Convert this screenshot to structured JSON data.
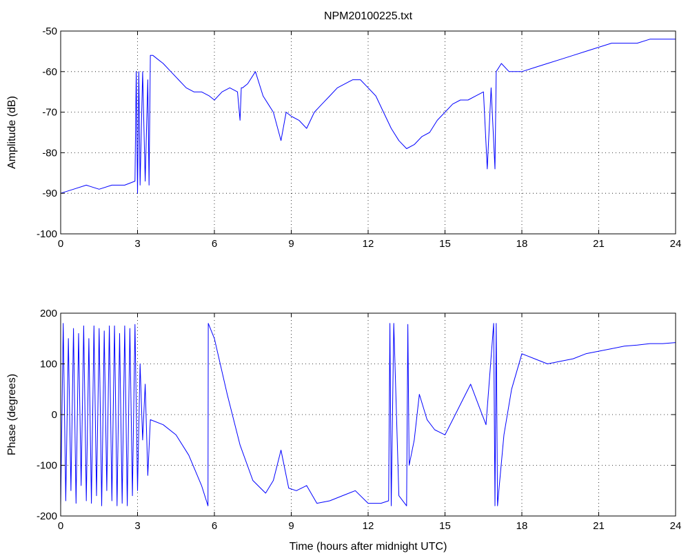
{
  "chart_data": [
    {
      "type": "line",
      "title": "NPM20100225.txt",
      "xlabel": "",
      "ylabel": "Amplitude (dB)",
      "xlim": [
        0,
        24
      ],
      "ylim": [
        -100,
        -50
      ],
      "xticks": [
        0,
        3,
        6,
        9,
        12,
        15,
        18,
        21,
        24
      ],
      "yticks": [
        -100,
        -90,
        -80,
        -70,
        -60,
        -50
      ],
      "grid": true,
      "series": [
        {
          "color": "#0000ff",
          "x": [
            0,
            0.5,
            1.0,
            1.5,
            2.0,
            2.5,
            2.9,
            2.95,
            3.0,
            3.05,
            3.1,
            3.2,
            3.3,
            3.4,
            3.45,
            3.5,
            3.6,
            3.8,
            4.0,
            4.3,
            4.6,
            4.9,
            5.2,
            5.5,
            5.8,
            6.0,
            6.3,
            6.6,
            6.9,
            7.0,
            7.05,
            7.1,
            7.3,
            7.6,
            7.9,
            8.1,
            8.3,
            8.6,
            8.8,
            9.0,
            9.3,
            9.6,
            9.9,
            10.2,
            10.5,
            10.8,
            11.1,
            11.4,
            11.7,
            12.0,
            12.3,
            12.6,
            12.9,
            13.2,
            13.5,
            13.8,
            14.1,
            14.4,
            14.7,
            15.0,
            15.3,
            15.6,
            15.9,
            16.2,
            16.5,
            16.65,
            16.8,
            16.95,
            17.0,
            17.2,
            17.5,
            17.8,
            18.0,
            18.5,
            19.0,
            19.5,
            20.0,
            20.5,
            21.0,
            21.5,
            22.0,
            22.5,
            23.0,
            23.5,
            24.0
          ],
          "y": [
            -90,
            -89,
            -88,
            -89,
            -88,
            -88,
            -87,
            -60,
            -90,
            -60,
            -88,
            -60,
            -87,
            -62,
            -88,
            -56,
            -56,
            -57,
            -58,
            -60,
            -62,
            -64,
            -65,
            -65,
            -66,
            -67,
            -65,
            -64,
            -65,
            -72,
            -64,
            -64,
            -63,
            -60,
            -66,
            -68,
            -70,
            -77,
            -70,
            -71,
            -72,
            -74,
            -70,
            -68,
            -66,
            -64,
            -63,
            -62,
            -62,
            -64,
            -66,
            -70,
            -74,
            -77,
            -79,
            -78,
            -76,
            -75,
            -72,
            -70,
            -68,
            -67,
            -67,
            -66,
            -65,
            -84,
            -64,
            -84,
            -60,
            -58,
            -60,
            -60,
            -60,
            -59,
            -58,
            -57,
            -56,
            -55,
            -54,
            -53,
            -53,
            -53,
            -52,
            -52,
            -52
          ]
        }
      ]
    },
    {
      "type": "line",
      "title": "",
      "xlabel": "Time (hours after midnight UTC)",
      "ylabel": "Phase (degrees)",
      "xlim": [
        0,
        24
      ],
      "ylim": [
        -200,
        200
      ],
      "xticks": [
        0,
        3,
        6,
        9,
        12,
        15,
        18,
        21,
        24
      ],
      "yticks": [
        -200,
        -100,
        0,
        100,
        200
      ],
      "grid": true,
      "series": [
        {
          "color": "#0000ff",
          "x": [
            0,
            0.1,
            0.2,
            0.3,
            0.4,
            0.5,
            0.6,
            0.7,
            0.8,
            0.9,
            1.0,
            1.1,
            1.2,
            1.3,
            1.4,
            1.5,
            1.6,
            1.7,
            1.8,
            1.9,
            2.0,
            2.1,
            2.2,
            2.3,
            2.4,
            2.5,
            2.6,
            2.7,
            2.8,
            2.9,
            3.0,
            3.1,
            3.2,
            3.3,
            3.4,
            3.5,
            4.0,
            4.5,
            5.0,
            5.5,
            5.75,
            5.76,
            6.0,
            6.5,
            7.0,
            7.5,
            8.0,
            8.3,
            8.6,
            8.9,
            9.2,
            9.6,
            10.0,
            10.5,
            11.0,
            11.5,
            12.0,
            12.5,
            12.8,
            12.85,
            12.9,
            13.0,
            13.2,
            13.5,
            13.55,
            13.6,
            13.8,
            14.0,
            14.3,
            14.6,
            15.0,
            15.3,
            15.7,
            16.0,
            16.3,
            16.6,
            16.9,
            16.95,
            17.0,
            17.05,
            17.1,
            17.3,
            17.6,
            18.0,
            18.5,
            19.0,
            19.5,
            20.0,
            20.5,
            21.0,
            21.5,
            22.0,
            22.5,
            23.0,
            23.5,
            24.0
          ],
          "y": [
            -180,
            180,
            -170,
            150,
            -150,
            170,
            -175,
            160,
            -140,
            175,
            -170,
            150,
            -175,
            175,
            -160,
            170,
            -180,
            165,
            -150,
            175,
            -170,
            175,
            -180,
            160,
            -175,
            175,
            -180,
            170,
            -160,
            178,
            -150,
            100,
            -50,
            60,
            -120,
            -10,
            -20,
            -40,
            -80,
            -140,
            -180,
            180,
            150,
            40,
            -60,
            -130,
            -155,
            -130,
            -70,
            -145,
            -150,
            -140,
            -175,
            -170,
            -160,
            -150,
            -175,
            -175,
            -170,
            180,
            -180,
            180,
            -160,
            -180,
            178,
            -100,
            -50,
            40,
            -10,
            -30,
            -40,
            -10,
            30,
            60,
            20,
            -20,
            180,
            -180,
            180,
            -180,
            -150,
            -40,
            50,
            120,
            110,
            100,
            105,
            110,
            120,
            125,
            130,
            135,
            137,
            140,
            140,
            142
          ]
        }
      ]
    }
  ]
}
